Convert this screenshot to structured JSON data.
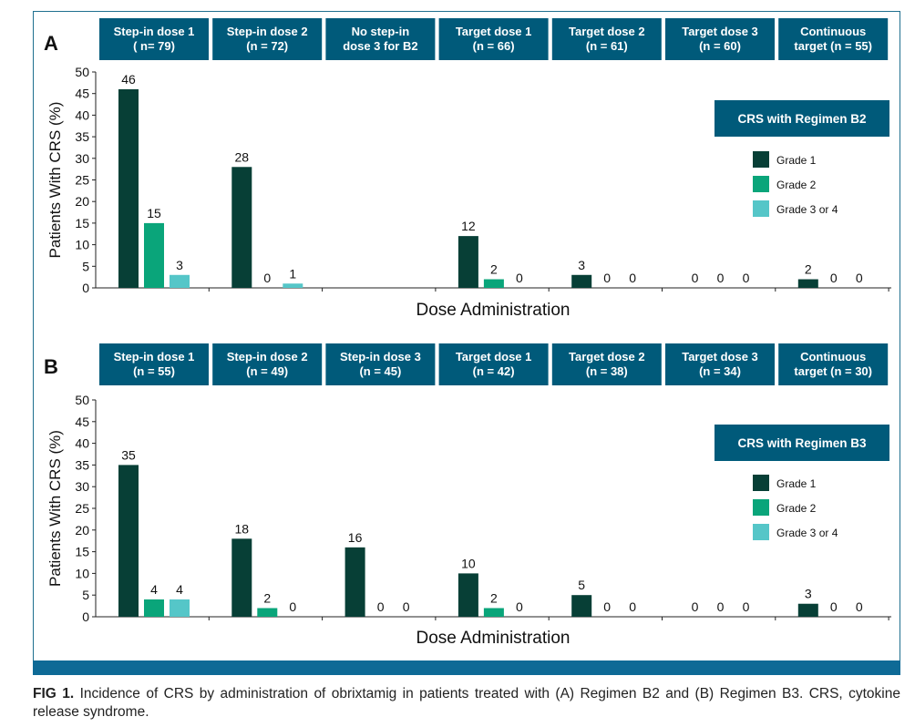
{
  "colors": {
    "grade1": "#073f36",
    "grade2": "#0aa57a",
    "grade3": "#55c6c8",
    "header_bg": "#005a7a",
    "legend_bar_bg": "#005a7a",
    "bottom_bar": "#0e6a96"
  },
  "caption": {
    "label": "FIG 1.",
    "text": "Incidence of CRS by administration of obrixtamig in patients treated with (A) Regimen B2 and (B) Regimen B3. CRS, cytokine release syndrome."
  },
  "chart_data": [
    {
      "panel_label": "A",
      "type": "bar",
      "title": "CRS with Regimen B2",
      "xlabel": "Dose Administration",
      "ylabel": "Patients With CRS (%)",
      "ylim": [
        0,
        50
      ],
      "yticks": [
        0,
        5,
        10,
        15,
        20,
        25,
        30,
        35,
        40,
        45,
        50
      ],
      "legend_position": "right",
      "categories": [
        [
          "Step-in dose 1",
          "( n= 79)"
        ],
        [
          "Step-in dose 2",
          "(n = 72)"
        ],
        [
          "No step-in",
          "dose 3 for B2"
        ],
        [
          "Target dose 1",
          "(n = 66)"
        ],
        [
          "Target dose 2",
          "(n = 61)"
        ],
        [
          "Target dose 3",
          "(n = 60)"
        ],
        [
          "Continuous",
          "target (n = 55)"
        ]
      ],
      "series": [
        {
          "name": "Grade 1",
          "values": [
            46,
            28,
            null,
            12,
            3,
            0,
            2
          ]
        },
        {
          "name": "Grade 2",
          "values": [
            15,
            0,
            null,
            2,
            0,
            0,
            0
          ]
        },
        {
          "name": "Grade 3 or 4",
          "values": [
            3,
            1,
            null,
            0,
            0,
            0,
            0
          ]
        }
      ]
    },
    {
      "panel_label": "B",
      "type": "bar",
      "title": "CRS with Regimen B3",
      "xlabel": "Dose Administration",
      "ylabel": "Patients With CRS (%)",
      "ylim": [
        0,
        50
      ],
      "yticks": [
        0,
        5,
        10,
        15,
        20,
        25,
        30,
        35,
        40,
        45,
        50
      ],
      "legend_position": "right",
      "categories": [
        [
          "Step-in dose 1",
          "(n = 55)"
        ],
        [
          "Step-in dose 2",
          "(n = 49)"
        ],
        [
          "Step-in dose 3",
          "(n = 45)"
        ],
        [
          "Target dose 1",
          "(n = 42)"
        ],
        [
          "Target dose 2",
          "(n = 38)"
        ],
        [
          "Target dose 3",
          "(n = 34)"
        ],
        [
          "Continuous",
          "target (n = 30)"
        ]
      ],
      "series": [
        {
          "name": "Grade 1",
          "values": [
            35,
            18,
            16,
            10,
            5,
            0,
            3
          ]
        },
        {
          "name": "Grade 2",
          "values": [
            4,
            2,
            0,
            2,
            0,
            0,
            0
          ]
        },
        {
          "name": "Grade 3 or 4",
          "values": [
            4,
            0,
            0,
            0,
            0,
            0,
            0
          ]
        }
      ]
    }
  ]
}
